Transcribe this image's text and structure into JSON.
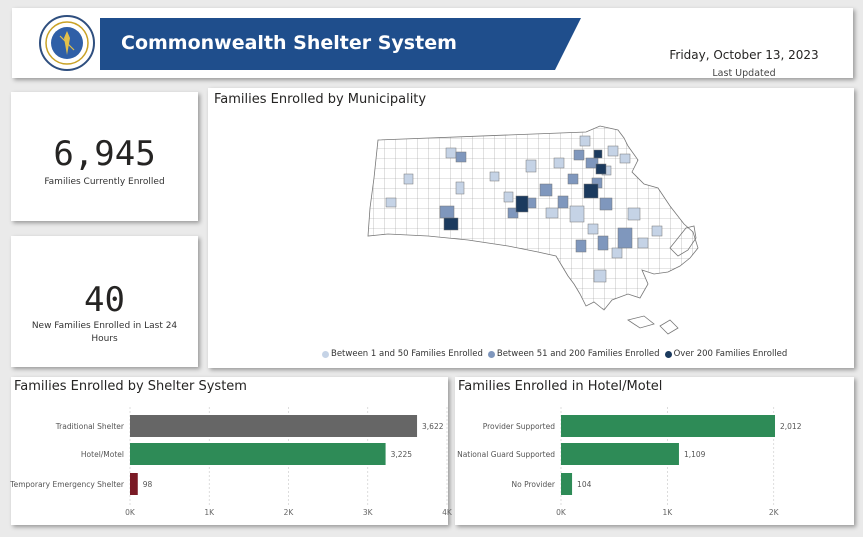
{
  "header": {
    "title": "Commonwealth Shelter System",
    "date": "Friday, October 13, 2023",
    "updated_label": "Last Updated",
    "banner_color": "#1f4e8c"
  },
  "kpis": [
    {
      "value": "6,945",
      "label": "Families Currently Enrolled"
    },
    {
      "value": "40",
      "label": "New Families Enrolled in Last 24 Hours"
    }
  ],
  "map": {
    "title": "Families Enrolled by Municipality",
    "legend": [
      {
        "label": "Between 1 and 50 Families Enrolled",
        "color": "#c5d3e6"
      },
      {
        "label": "Between 51 and 200 Families Enrolled",
        "color": "#7f97bd"
      },
      {
        "label": "Over 200 Families Enrolled",
        "color": "#1b3a5e"
      }
    ]
  },
  "chart_data": [
    {
      "type": "bar",
      "orientation": "horizontal",
      "title": "Families Enrolled by Shelter System",
      "categories": [
        "Traditional Shelter",
        "Hotel/Motel",
        "Temporary Emergency Shelter"
      ],
      "values": [
        3622,
        3225,
        98
      ],
      "value_labels": [
        "3,622",
        "3,225",
        "98"
      ],
      "colors": [
        "#666666",
        "#2e8b57",
        "#7a1a25"
      ],
      "xlim": [
        0,
        4000
      ],
      "xticks": [
        0,
        1000,
        2000,
        3000,
        4000
      ],
      "xtick_labels": [
        "0K",
        "1K",
        "2K",
        "3K",
        "4K"
      ],
      "grid": true
    },
    {
      "type": "bar",
      "orientation": "horizontal",
      "title": "Families Enrolled in Hotel/Motel",
      "categories": [
        "Provider Supported",
        "National Guard Supported",
        "No Provider"
      ],
      "values": [
        2012,
        1109,
        104
      ],
      "value_labels": [
        "2,012",
        "1,109",
        "104"
      ],
      "colors": [
        "#2e8b57",
        "#2e8b57",
        "#2e8b57"
      ],
      "xlim": [
        0,
        2200
      ],
      "xticks": [
        0,
        1000,
        2000
      ],
      "xtick_labels": [
        "0K",
        "1K",
        "2K"
      ],
      "grid": true
    }
  ]
}
